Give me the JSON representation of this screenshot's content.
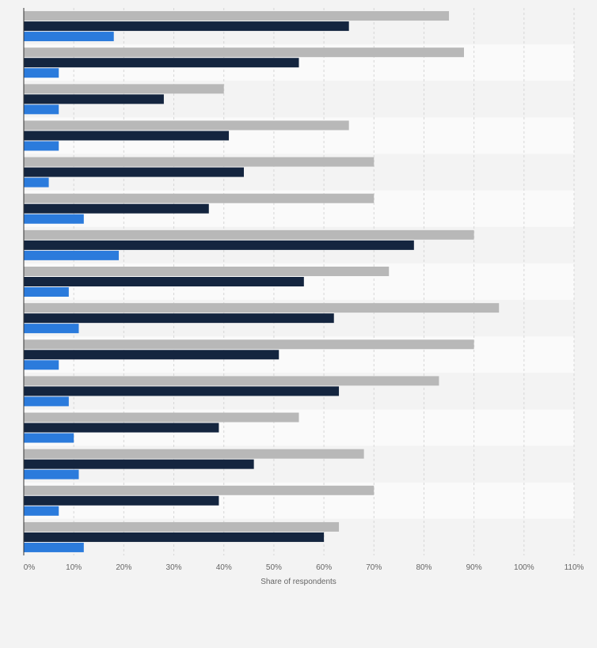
{
  "chart_data": {
    "type": "bar",
    "orientation": "horizontal",
    "xlabel": "Share of respondents",
    "xlim": [
      0,
      110
    ],
    "xticks": [
      0,
      10,
      20,
      30,
      40,
      50,
      60,
      70,
      80,
      90,
      100,
      110
    ],
    "tick_suffix": "%",
    "grid": true,
    "category_count": 15,
    "series": [
      {
        "color": "#b8b8b8",
        "values": [
          85,
          88,
          40,
          65,
          70,
          70,
          90,
          73,
          95,
          90,
          83,
          55,
          68,
          70,
          63
        ]
      },
      {
        "color": "#14253f",
        "values": [
          65,
          55,
          28,
          41,
          44,
          37,
          78,
          56,
          62,
          51,
          63,
          39,
          46,
          39,
          60
        ]
      },
      {
        "color": "#2b7bdc",
        "values": [
          18,
          7,
          7,
          7,
          5,
          12,
          19,
          9,
          11,
          7,
          9,
          10,
          11,
          7,
          12
        ]
      }
    ]
  }
}
